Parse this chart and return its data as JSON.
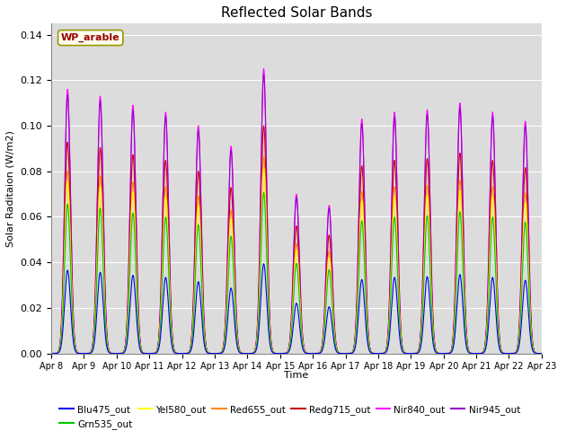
{
  "title": "Reflected Solar Bands",
  "xlabel": "Time",
  "ylabel": "Solar Raditaion (W/m2)",
  "annotation": "WP_arable",
  "ylim": [
    0,
    0.145
  ],
  "yticks": [
    0.0,
    0.02,
    0.04,
    0.06,
    0.08,
    0.1,
    0.12,
    0.14
  ],
  "xtick_labels": [
    "Apr 8",
    "Apr 9",
    "Apr 10",
    "Apr 11",
    "Apr 12",
    "Apr 13",
    "Apr 14",
    "Apr 15",
    "Apr 16",
    "Apr 17",
    "Apr 18",
    "Apr 19",
    "Apr 20",
    "Apr 21",
    "Apr 22",
    "Apr 23"
  ],
  "colors": {
    "Blu475_out": "#0000EE",
    "Grn535_out": "#00CC00",
    "Yel580_out": "#FFFF00",
    "Red655_out": "#FF8800",
    "Redg715_out": "#CC0000",
    "Nir840_out": "#FF00FF",
    "Nir945_out": "#9900CC"
  },
  "nir840_peaks": [
    0.116,
    0.113,
    0.109,
    0.106,
    0.1,
    0.091,
    0.125,
    0.07,
    0.065,
    0.103,
    0.106,
    0.107,
    0.11,
    0.106,
    0.102
  ],
  "scale_factors": {
    "Blu475_out": 0.315,
    "Grn535_out": 0.565,
    "Yel580_out": 0.65,
    "Red655_out": 0.69,
    "Redg715_out": 0.8,
    "Nir840_out": 1.0,
    "Nir945_out": 0.98
  },
  "background_color": "#dcdcdc",
  "fig_width": 6.4,
  "fig_height": 4.8,
  "dpi": 100
}
